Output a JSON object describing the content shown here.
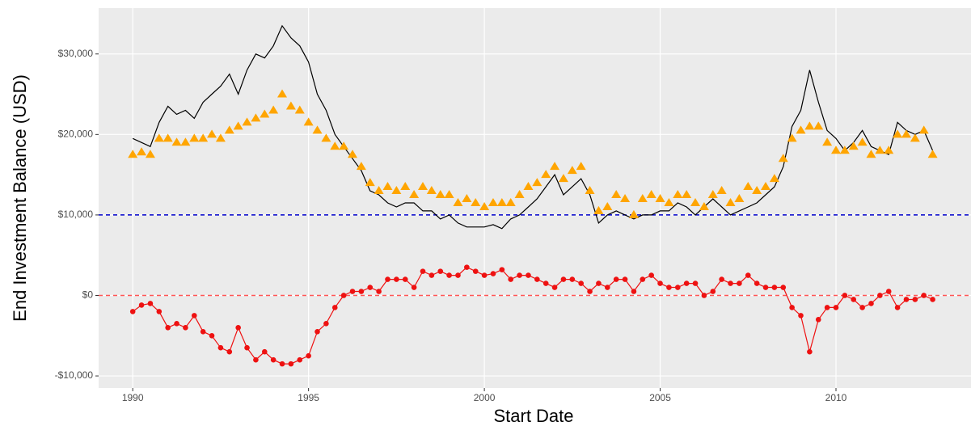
{
  "chart_data": {
    "type": "line",
    "xlabel": "Start Date",
    "ylabel": "End Investment Balance (USD)",
    "x": [
      1990,
      1990.25,
      1990.5,
      1990.75,
      1991,
      1991.25,
      1991.5,
      1991.75,
      1992,
      1992.25,
      1992.5,
      1992.75,
      1993,
      1993.25,
      1993.5,
      1993.75,
      1994,
      1994.25,
      1994.5,
      1994.75,
      1995,
      1995.25,
      1995.5,
      1995.75,
      1996,
      1996.25,
      1996.5,
      1996.75,
      1997,
      1997.25,
      1997.5,
      1997.75,
      1998,
      1998.25,
      1998.5,
      1998.75,
      1999,
      1999.25,
      1999.5,
      1999.75,
      2000,
      2000.25,
      2000.5,
      2000.75,
      2001,
      2001.25,
      2001.5,
      2001.75,
      2002,
      2002.25,
      2002.5,
      2002.75,
      2003,
      2003.25,
      2003.5,
      2003.75,
      2004,
      2004.25,
      2004.5,
      2004.75,
      2005,
      2005.25,
      2005.5,
      2005.75,
      2006,
      2006.25,
      2006.5,
      2006.75,
      2007,
      2007.25,
      2007.5,
      2007.75,
      2008,
      2008.25,
      2008.5,
      2008.75,
      2009,
      2009.25,
      2009.5,
      2009.75,
      2010,
      2010.25,
      2010.5,
      2010.75,
      2011,
      2011.25,
      2011.5,
      2011.75,
      2012,
      2012.25,
      2012.5,
      2012.75
    ],
    "series": [
      {
        "color": "#000000",
        "marker": "none",
        "values": [
          19500,
          19000,
          18500,
          21500,
          23500,
          22500,
          23000,
          22000,
          24000,
          25000,
          26000,
          27500,
          25000,
          28000,
          30000,
          29500,
          31000,
          33500,
          32000,
          31000,
          29000,
          25000,
          23000,
          20000,
          18500,
          17000,
          15500,
          13000,
          12500,
          11500,
          11000,
          11500,
          11500,
          10500,
          10500,
          9500,
          10000,
          9000,
          8500,
          8500,
          8500,
          8800,
          8300,
          9500,
          10000,
          11000,
          12000,
          13500,
          15000,
          12500,
          13500,
          14500,
          12500,
          9000,
          10000,
          10500,
          10000,
          9500,
          10000,
          10000,
          10500,
          10500,
          11500,
          11000,
          10000,
          11000,
          12000,
          11000,
          10000,
          10500,
          11000,
          11500,
          12500,
          13500,
          16000,
          21000,
          23000,
          28000,
          24000,
          20500,
          19500,
          18000,
          19000,
          20500,
          18500,
          18000,
          17500,
          21500,
          20500,
          20000,
          20500,
          18000
        ]
      },
      {
        "color": "#ffa500",
        "marker": "triangle",
        "values": [
          17500,
          17800,
          17500,
          19500,
          19500,
          19000,
          19000,
          19500,
          19500,
          20000,
          19500,
          20500,
          21000,
          21500,
          22000,
          22500,
          23000,
          25000,
          23500,
          23000,
          21500,
          20500,
          19500,
          18500,
          18500,
          17500,
          16000,
          14000,
          13000,
          13500,
          13000,
          13500,
          12500,
          13500,
          13000,
          12500,
          12500,
          11500,
          12000,
          11500,
          11000,
          11500,
          11500,
          11500,
          12500,
          13500,
          14000,
          15000,
          16000,
          14500,
          15500,
          16000,
          13000,
          10500,
          11000,
          12500,
          12000,
          10000,
          12000,
          12500,
          12000,
          11500,
          12500,
          12500,
          11500,
          11000,
          12500,
          13000,
          11500,
          12000,
          13500,
          13000,
          13500,
          14500,
          17000,
          19500,
          20500,
          21000,
          21000,
          19000,
          18000,
          18000,
          18500,
          19000,
          17500,
          18000,
          18000,
          20000,
          20000,
          19500,
          20500,
          17500
        ]
      },
      {
        "color": "#ee1111",
        "marker": "circle",
        "values": [
          -2000,
          -1200,
          -1000,
          -2000,
          -4000,
          -3500,
          -4000,
          -2500,
          -4500,
          -5000,
          -6500,
          -7000,
          -4000,
          -6500,
          -8000,
          -7000,
          -8000,
          -8500,
          -8500,
          -8000,
          -7500,
          -4500,
          -3500,
          -1500,
          0,
          500,
          500,
          1000,
          500,
          2000,
          2000,
          2000,
          1000,
          3000,
          2500,
          3000,
          2500,
          2500,
          3500,
          3000,
          2500,
          2700,
          3200,
          2000,
          2500,
          2500,
          2000,
          1500,
          1000,
          2000,
          2000,
          1500,
          500,
          1500,
          1000,
          2000,
          2000,
          500,
          2000,
          2500,
          1500,
          1000,
          1000,
          1500,
          1500,
          0,
          500,
          2000,
          1500,
          1500,
          2500,
          1500,
          1000,
          1000,
          1000,
          -1500,
          -2500,
          -7000,
          -3000,
          -1500,
          -1500,
          0,
          -500,
          -1500,
          -1000,
          0,
          500,
          -1500,
          -500,
          -500,
          0,
          -500
        ]
      }
    ],
    "hlines": [
      {
        "value": 10000,
        "color": "#0000cc"
      },
      {
        "value": 0,
        "color": "#ff5555"
      }
    ],
    "xlim": [
      1989.03,
      2013.84
    ],
    "xticks": [
      1990,
      1995,
      2000,
      2005,
      2010
    ],
    "ylim": [
      -11500,
      35700
    ],
    "yticks": [
      {
        "value": -10000,
        "label": "-$10,000"
      },
      {
        "value": 0,
        "label": "$0"
      },
      {
        "value": 10000,
        "label": "$10,000"
      },
      {
        "value": 20000,
        "label": "$20,000"
      },
      {
        "value": 30000,
        "label": "$30,000"
      }
    ],
    "grid": true
  }
}
